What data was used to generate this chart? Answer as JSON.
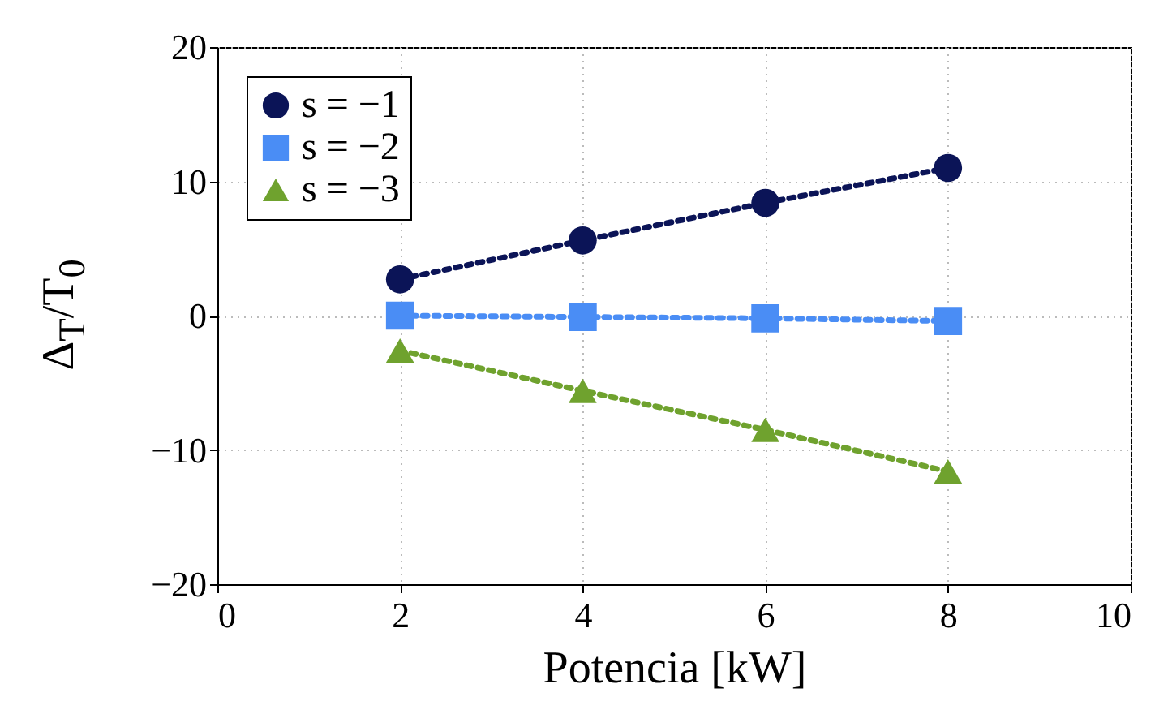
{
  "chart_data": {
    "type": "line",
    "xlabel": "Potencia [kW]",
    "ylabel": "Δ$_{T}$/T$_{0}$",
    "x": [
      2,
      4,
      6,
      8
    ],
    "series": [
      {
        "name": "s = −1",
        "color": "#0b1457",
        "marker": "circle",
        "values": [
          2.7,
          5.6,
          8.4,
          11.0
        ]
      },
      {
        "name": "s = −2",
        "color": "#4a8df5",
        "marker": "square",
        "values": [
          0,
          -0.1,
          -0.2,
          -0.4
        ]
      },
      {
        "name": "s = −3",
        "color": "#6fa22e",
        "marker": "triangle",
        "values": [
          -2.6,
          -5.6,
          -8.5,
          -11.6
        ]
      }
    ],
    "xlim": [
      0,
      10
    ],
    "xticks": [
      0,
      2,
      4,
      6,
      8,
      10
    ],
    "ylim": [
      -20,
      20
    ],
    "yticks": [
      -20,
      -10,
      0,
      10,
      20
    ],
    "grid": true,
    "legend": "top left",
    "line_style": "dotted"
  }
}
